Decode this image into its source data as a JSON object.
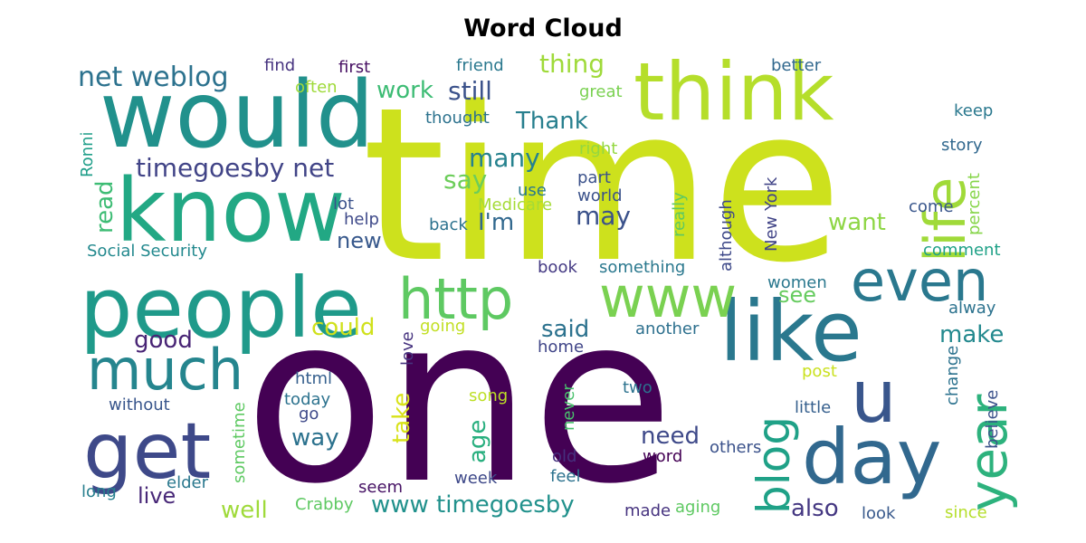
{
  "title": "Word Cloud",
  "chart_data": {
    "type": "wordcloud",
    "title": "Word Cloud",
    "colormap": "viridis",
    "words": [
      {
        "text": "time",
        "weight": 1.0,
        "color": "#cde11d"
      },
      {
        "text": "one",
        "weight": 0.95,
        "color": "#440154"
      },
      {
        "text": "would",
        "weight": 0.55,
        "color": "#21918c"
      },
      {
        "text": "think",
        "weight": 0.52,
        "color": "#b5de2b"
      },
      {
        "text": "know",
        "weight": 0.52,
        "color": "#22a884"
      },
      {
        "text": "people",
        "weight": 0.5,
        "color": "#1f9a8a"
      },
      {
        "text": "like",
        "weight": 0.5,
        "color": "#2a788e"
      },
      {
        "text": "day",
        "weight": 0.45,
        "color": "#31688e"
      },
      {
        "text": "get",
        "weight": 0.44,
        "color": "#3e4989"
      },
      {
        "text": "http",
        "weight": 0.34,
        "color": "#5ec962"
      },
      {
        "text": "www",
        "weight": 0.34,
        "color": "#7ad151"
      },
      {
        "text": "much",
        "weight": 0.33,
        "color": "#25858e"
      },
      {
        "text": "even",
        "weight": 0.33,
        "color": "#2a788e"
      },
      {
        "text": "u",
        "weight": 0.35,
        "color": "#39568c"
      },
      {
        "text": "life",
        "weight": 0.32,
        "color": "#a0da39"
      },
      {
        "text": "year",
        "weight": 0.3,
        "color": "#2db27d"
      },
      {
        "text": "blog",
        "weight": 0.28,
        "color": "#1fa187"
      },
      {
        "text": "net weblog",
        "weight": 0.17,
        "color": "#2c728e"
      },
      {
        "text": "timegoesby net",
        "weight": 0.17,
        "color": "#414487"
      },
      {
        "text": "www timegoesby",
        "weight": 0.16,
        "color": "#21918c"
      },
      {
        "text": "still",
        "weight": 0.16,
        "color": "#3b528b"
      },
      {
        "text": "thing",
        "weight": 0.16,
        "color": "#9fda3a"
      },
      {
        "text": "work",
        "weight": 0.15,
        "color": "#3dbc74"
      },
      {
        "text": "many",
        "weight": 0.16,
        "color": "#26828e"
      },
      {
        "text": "say",
        "weight": 0.15,
        "color": "#6ccd5a"
      },
      {
        "text": "Thank",
        "weight": 0.15,
        "color": "#277f8e"
      },
      {
        "text": "I'm",
        "weight": 0.14,
        "color": "#31688e"
      },
      {
        "text": "may",
        "weight": 0.14,
        "color": "#3b528b"
      },
      {
        "text": "read",
        "weight": 0.13,
        "color": "#3dbc74"
      },
      {
        "text": "new",
        "weight": 0.14,
        "color": "#38598c"
      },
      {
        "text": "want",
        "weight": 0.14,
        "color": "#8ed645"
      },
      {
        "text": "see",
        "weight": 0.13,
        "color": "#65cb5e"
      },
      {
        "text": "could",
        "weight": 0.14,
        "color": "#d0e11c"
      },
      {
        "text": "said",
        "weight": 0.14,
        "color": "#2c728e"
      },
      {
        "text": "make",
        "weight": 0.14,
        "color": "#23898e"
      },
      {
        "text": "good",
        "weight": 0.14,
        "color": "#482475"
      },
      {
        "text": "take",
        "weight": 0.14,
        "color": "#d8e219"
      },
      {
        "text": "age",
        "weight": 0.14,
        "color": "#29af7f"
      },
      {
        "text": "way",
        "weight": 0.14,
        "color": "#2c728e"
      },
      {
        "text": "need",
        "weight": 0.14,
        "color": "#3e4989"
      },
      {
        "text": "well",
        "weight": 0.14,
        "color": "#9fda3a"
      },
      {
        "text": "also",
        "weight": 0.14,
        "color": "#453882"
      },
      {
        "text": "live",
        "weight": 0.13,
        "color": "#482878"
      },
      {
        "text": "find",
        "weight": 0.1,
        "color": "#46337f"
      },
      {
        "text": "first",
        "weight": 0.1,
        "color": "#471063"
      },
      {
        "text": "friend",
        "weight": 0.1,
        "color": "#2a788e"
      },
      {
        "text": "better",
        "weight": 0.1,
        "color": "#31688e"
      },
      {
        "text": "often",
        "weight": 0.1,
        "color": "#9fda3a"
      },
      {
        "text": "great",
        "weight": 0.1,
        "color": "#7ad151"
      },
      {
        "text": "thought",
        "weight": 0.1,
        "color": "#2c728e"
      },
      {
        "text": "keep",
        "weight": 0.09,
        "color": "#2a788e"
      },
      {
        "text": "Ronni",
        "weight": 0.09,
        "color": "#1f9e89"
      },
      {
        "text": "right",
        "weight": 0.09,
        "color": "#93d741"
      },
      {
        "text": "story",
        "weight": 0.09,
        "color": "#31688e"
      },
      {
        "text": "part",
        "weight": 0.09,
        "color": "#3b528b"
      },
      {
        "text": "Medicare",
        "weight": 0.1,
        "color": "#a5db36"
      },
      {
        "text": "use",
        "weight": 0.09,
        "color": "#2a788e"
      },
      {
        "text": "world",
        "weight": 0.1,
        "color": "#3b528b"
      },
      {
        "text": "really",
        "weight": 0.09,
        "color": "#5ec962"
      },
      {
        "text": "although",
        "weight": 0.09,
        "color": "#3e4989"
      },
      {
        "text": "New York",
        "weight": 0.09,
        "color": "#414487"
      },
      {
        "text": "percent",
        "weight": 0.08,
        "color": "#86d549"
      },
      {
        "text": "come",
        "weight": 0.09,
        "color": "#39568c"
      },
      {
        "text": "lot",
        "weight": 0.09,
        "color": "#3b528b"
      },
      {
        "text": "help",
        "weight": 0.09,
        "color": "#3e4989"
      },
      {
        "text": "back",
        "weight": 0.09,
        "color": "#2c728e"
      },
      {
        "text": "Social Security",
        "weight": 0.1,
        "color": "#23898e"
      },
      {
        "text": "comment",
        "weight": 0.09,
        "color": "#1fa187"
      },
      {
        "text": "book",
        "weight": 0.09,
        "color": "#443983"
      },
      {
        "text": "something",
        "weight": 0.1,
        "color": "#2a788e"
      },
      {
        "text": "women",
        "weight": 0.09,
        "color": "#2a788e"
      },
      {
        "text": "alway",
        "weight": 0.09,
        "color": "#2c728e"
      },
      {
        "text": "going",
        "weight": 0.09,
        "color": "#c2df23"
      },
      {
        "text": "love",
        "weight": 0.09,
        "color": "#46337f"
      },
      {
        "text": "another",
        "weight": 0.09,
        "color": "#2d708e"
      },
      {
        "text": "home",
        "weight": 0.09,
        "color": "#404588"
      },
      {
        "text": "post",
        "weight": 0.09,
        "color": "#cae11f"
      },
      {
        "text": "change",
        "weight": 0.09,
        "color": "#2c728e"
      },
      {
        "text": "believe",
        "weight": 0.09,
        "color": "#3b528b"
      },
      {
        "text": "html",
        "weight": 0.09,
        "color": "#355f8d"
      },
      {
        "text": "today",
        "weight": 0.09,
        "color": "#2c728e"
      },
      {
        "text": "without",
        "weight": 0.09,
        "color": "#39568c"
      },
      {
        "text": "sometime",
        "weight": 0.08,
        "color": "#5ec962"
      },
      {
        "text": "go",
        "weight": 0.09,
        "color": "#3e4989"
      },
      {
        "text": "song",
        "weight": 0.09,
        "color": "#bddf26"
      },
      {
        "text": "never",
        "weight": 0.09,
        "color": "#4ac16d"
      },
      {
        "text": "two",
        "weight": 0.09,
        "color": "#2c728e"
      },
      {
        "text": "little",
        "weight": 0.09,
        "color": "#355f8d"
      },
      {
        "text": "old",
        "weight": 0.09,
        "color": "#46307e"
      },
      {
        "text": "word",
        "weight": 0.09,
        "color": "#440154"
      },
      {
        "text": "others",
        "weight": 0.09,
        "color": "#3b528b"
      },
      {
        "text": "elder",
        "weight": 0.09,
        "color": "#2a788e"
      },
      {
        "text": "seem",
        "weight": 0.09,
        "color": "#471365"
      },
      {
        "text": "week",
        "weight": 0.09,
        "color": "#3e4989"
      },
      {
        "text": "feel",
        "weight": 0.09,
        "color": "#2c728e"
      },
      {
        "text": "long",
        "weight": 0.09,
        "color": "#277f8e"
      },
      {
        "text": "Crabby",
        "weight": 0.09,
        "color": "#5ec962"
      },
      {
        "text": "made",
        "weight": 0.09,
        "color": "#46337f"
      },
      {
        "text": "aging",
        "weight": 0.09,
        "color": "#5ec962"
      },
      {
        "text": "look",
        "weight": 0.09,
        "color": "#38598c"
      },
      {
        "text": "since",
        "weight": 0.09,
        "color": "#b5de2b"
      }
    ]
  }
}
